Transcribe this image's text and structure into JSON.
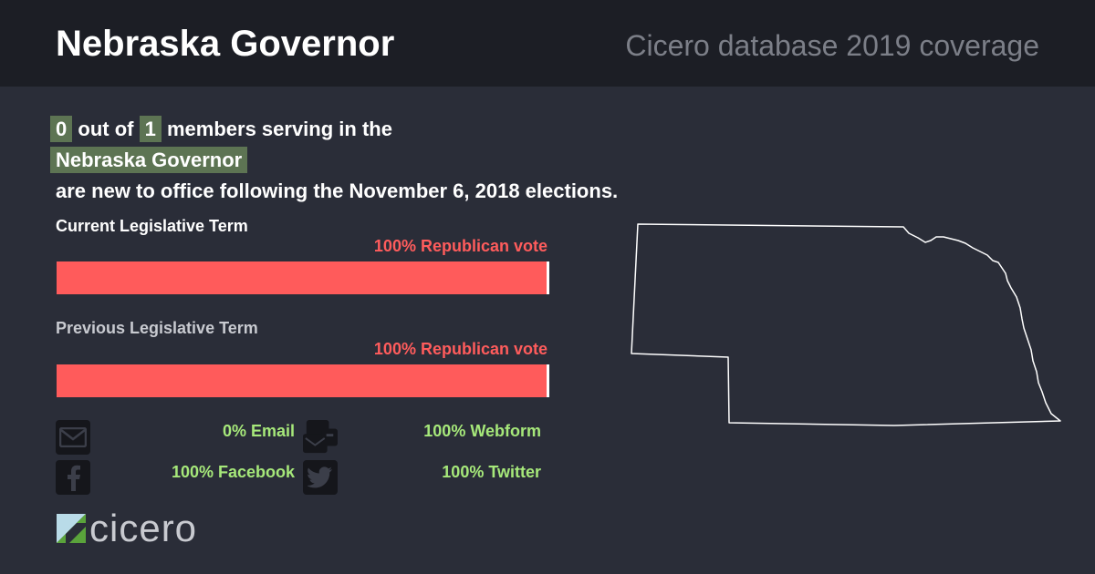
{
  "header": {
    "title": "Nebraska Governor",
    "subtitle": "Cicero database 2019 coverage"
  },
  "summary": {
    "new_count": "0",
    "out_of_text": "out of",
    "total_count": "1",
    "serving_text": "members serving in the",
    "body_name": "Nebraska Governor",
    "closing_text": "are new to office following the November 6, 2018 elections."
  },
  "terms": {
    "current": {
      "label": "Current Legislative Term",
      "vote_label": "100% Republican vote",
      "republican_fraction": 0.995
    },
    "previous": {
      "label": "Previous Legislative Term",
      "vote_label": "100% Republican vote",
      "republican_fraction": 0.995
    }
  },
  "contact": {
    "email": {
      "value": "0% Email",
      "icon": "envelope-icon"
    },
    "webform": {
      "value": "100% Webform",
      "icon": "webform-icon"
    },
    "facebook": {
      "value": "100% Facebook",
      "icon": "facebook-icon"
    },
    "twitter": {
      "value": "100% Twitter",
      "icon": "twitter-icon"
    }
  },
  "logo": {
    "text": "cicero"
  },
  "colors": {
    "republican": "#ff5b5b",
    "highlight": "#5d7453",
    "contact_value": "#a6e87a"
  }
}
